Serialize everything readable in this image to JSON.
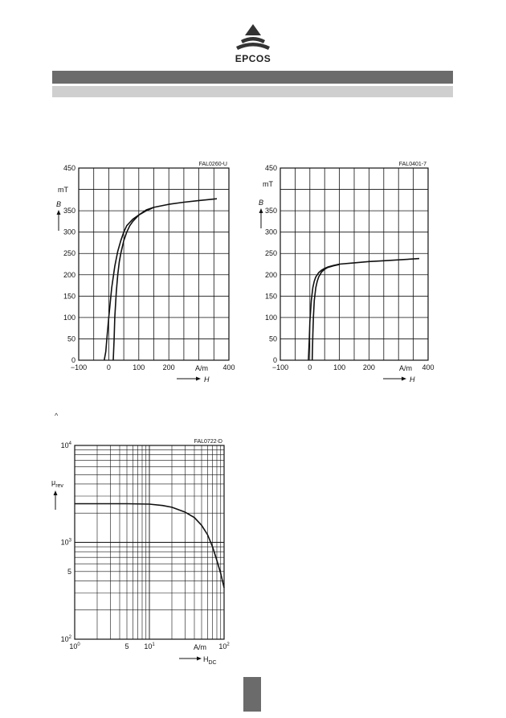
{
  "brand": {
    "name": "EPCOS"
  },
  "tiny_mark": "^",
  "chart_data": [
    {
      "type": "line",
      "code": "FAL0260-U",
      "xlim": [
        -100,
        400
      ],
      "ylim": [
        0,
        450
      ],
      "x_ticks": [
        -100,
        0,
        100,
        200,
        400
      ],
      "x_tick_labels": [
        "−100",
        "0",
        "100",
        "200",
        "400"
      ],
      "x_unit": "A/m",
      "xlabel": "H",
      "y_ticks": [
        0,
        50,
        100,
        150,
        200,
        250,
        300,
        350,
        450
      ],
      "y_unit": "mT",
      "ylabel": "B",
      "grid": true,
      "series": [
        {
          "x": [
            -15,
            -10,
            -5,
            0,
            10,
            20,
            30,
            40,
            50,
            60,
            80,
            100,
            125,
            150,
            200,
            250,
            300,
            360
          ],
          "y": [
            0,
            20,
            60,
            100,
            170,
            220,
            255,
            280,
            300,
            315,
            330,
            340,
            350,
            358,
            365,
            370,
            374,
            378
          ]
        },
        {
          "x": [
            15,
            18,
            20,
            25,
            30,
            35,
            40,
            50,
            60,
            70,
            80,
            100,
            125,
            150
          ],
          "y": [
            0,
            50,
            100,
            160,
            200,
            230,
            250,
            280,
            300,
            315,
            325,
            340,
            352,
            358
          ]
        }
      ]
    },
    {
      "type": "line",
      "code": "FAL0401-7",
      "xlim": [
        -100,
        400
      ],
      "ylim": [
        0,
        450
      ],
      "x_ticks": [
        -100,
        0,
        100,
        200,
        400
      ],
      "x_tick_labels": [
        "−100",
        "0",
        "100",
        "200",
        "400"
      ],
      "x_unit": "A/m",
      "xlabel": "H",
      "y_ticks": [
        0,
        50,
        100,
        150,
        200,
        250,
        300,
        350,
        450
      ],
      "y_unit": "mT",
      "ylabel": "B",
      "grid": true,
      "series": [
        {
          "x": [
            -5,
            -2,
            0,
            5,
            10,
            15,
            20,
            30,
            40,
            50,
            60,
            80,
            100,
            150,
            200,
            250,
            300,
            370
          ],
          "y": [
            0,
            50,
            90,
            140,
            170,
            185,
            195,
            205,
            211,
            215,
            218,
            222,
            225,
            228,
            231,
            233,
            235,
            238
          ]
        },
        {
          "x": [
            8,
            10,
            12,
            15,
            20,
            25,
            30,
            40,
            50,
            60,
            80,
            100
          ],
          "y": [
            0,
            60,
            100,
            140,
            170,
            185,
            195,
            207,
            213,
            217,
            221,
            224
          ]
        }
      ]
    },
    {
      "type": "line",
      "code": "FAL0722-D",
      "xscale": "log",
      "yscale": "log",
      "xlim": [
        1,
        100
      ],
      "ylim": [
        100,
        10000
      ],
      "x_tick_labels": [
        {
          "value": 1,
          "base": "10",
          "exp": "0"
        },
        {
          "value": 5,
          "base": "5",
          "exp": ""
        },
        {
          "value": 10,
          "base": "10",
          "exp": "1"
        },
        {
          "value": 100,
          "base": "10",
          "exp": "2"
        }
      ],
      "y_tick_labels": [
        {
          "value": 100,
          "base": "10",
          "exp": "2"
        },
        {
          "value": 500,
          "base": "5",
          "exp": ""
        },
        {
          "value": 1000,
          "base": "10",
          "exp": "3"
        },
        {
          "value": 10000,
          "base": "10",
          "exp": "4"
        }
      ],
      "x_unit": "A/m",
      "xlabel": {
        "main": "H",
        "sub": "DC"
      },
      "ylabel": {
        "main": "μ",
        "sub": "rev"
      },
      "grid": true,
      "series": [
        {
          "x": [
            1,
            2,
            5,
            10,
            15,
            20,
            30,
            40,
            50,
            60,
            70,
            80,
            90,
            100
          ],
          "y": [
            2500,
            2500,
            2500,
            2480,
            2400,
            2300,
            2050,
            1800,
            1500,
            1200,
            900,
            650,
            480,
            340
          ]
        }
      ]
    }
  ]
}
